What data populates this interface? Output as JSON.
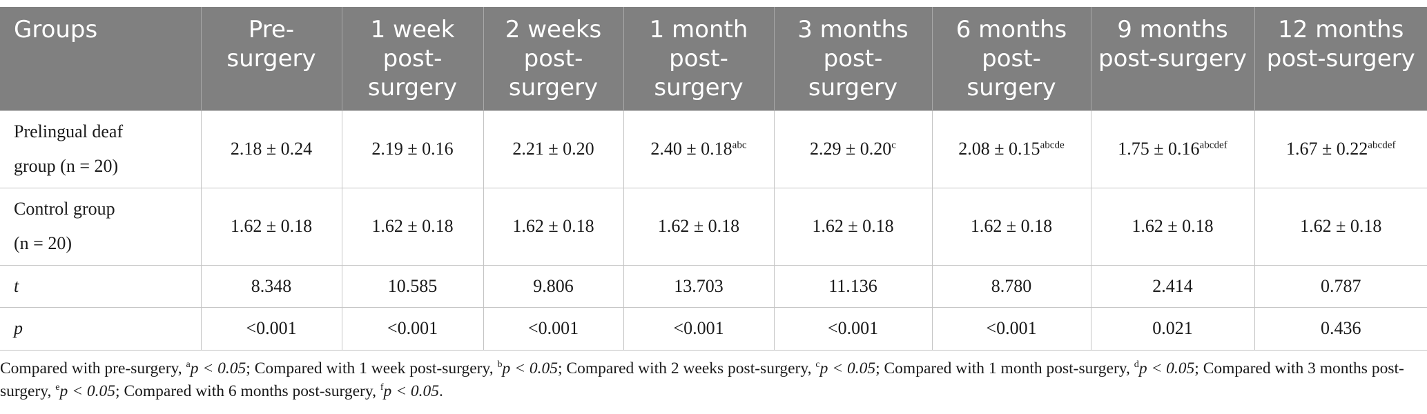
{
  "table": {
    "header": [
      "Groups",
      "Pre-surgery",
      "1 week post-surgery",
      "2 weeks post-surgery",
      "1 month post-surgery",
      "3 months post-surgery",
      "6 months post-surgery",
      "9 months post-surgery",
      "12 months post-surgery"
    ],
    "rows": [
      {
        "label_line1": "Prelingual deaf",
        "label_line2": "group (n = 20)",
        "cells": [
          {
            "value": "2.18 ± 0.24",
            "sup": ""
          },
          {
            "value": "2.19 ± 0.16",
            "sup": ""
          },
          {
            "value": "2.21 ± 0.20",
            "sup": ""
          },
          {
            "value": "2.40 ± 0.18",
            "sup": "abc"
          },
          {
            "value": "2.29 ± 0.20",
            "sup": "c"
          },
          {
            "value": "2.08 ± 0.15",
            "sup": "abcde"
          },
          {
            "value": "1.75 ± 0.16",
            "sup": "abcdef"
          },
          {
            "value": "1.67 ± 0.22",
            "sup": "abcdef"
          }
        ]
      },
      {
        "label_line1": "Control group",
        "label_line2": "(n = 20)",
        "cells": [
          {
            "value": "1.62 ± 0.18",
            "sup": ""
          },
          {
            "value": "1.62 ± 0.18",
            "sup": ""
          },
          {
            "value": "1.62 ± 0.18",
            "sup": ""
          },
          {
            "value": "1.62 ± 0.18",
            "sup": ""
          },
          {
            "value": "1.62 ± 0.18",
            "sup": ""
          },
          {
            "value": "1.62 ± 0.18",
            "sup": ""
          },
          {
            "value": "1.62 ± 0.18",
            "sup": ""
          },
          {
            "value": "1.62 ± 0.18",
            "sup": ""
          }
        ]
      },
      {
        "label_line1": "t",
        "label_line2": "",
        "cells": [
          {
            "value": "8.348",
            "sup": ""
          },
          {
            "value": "10.585",
            "sup": ""
          },
          {
            "value": "9.806",
            "sup": ""
          },
          {
            "value": "13.703",
            "sup": ""
          },
          {
            "value": "11.136",
            "sup": ""
          },
          {
            "value": "8.780",
            "sup": ""
          },
          {
            "value": "2.414",
            "sup": ""
          },
          {
            "value": "0.787",
            "sup": ""
          }
        ]
      },
      {
        "label_line1": "p",
        "label_line2": "",
        "cells": [
          {
            "value": "<0.001",
            "sup": ""
          },
          {
            "value": "<0.001",
            "sup": ""
          },
          {
            "value": "<0.001",
            "sup": ""
          },
          {
            "value": "<0.001",
            "sup": ""
          },
          {
            "value": "<0.001",
            "sup": ""
          },
          {
            "value": "<0.001",
            "sup": ""
          },
          {
            "value": "0.021",
            "sup": ""
          },
          {
            "value": "0.436",
            "sup": ""
          }
        ]
      }
    ]
  },
  "footnote": {
    "items": [
      {
        "prefix": "Compared with pre-surgery, ",
        "mark": "a",
        "cond": "p < 0.05"
      },
      {
        "prefix": "Compared with 1 week post-surgery, ",
        "mark": "b",
        "cond": "p < 0.05"
      },
      {
        "prefix": "Compared with 2 weeks post-surgery, ",
        "mark": "c",
        "cond": "p < 0.05"
      },
      {
        "prefix": "Compared with 1 month post-surgery, ",
        "mark": "d",
        "cond": "p < 0.05"
      },
      {
        "prefix": "Compared with 3 months post-surgery, ",
        "mark": "e",
        "cond": "p < 0.05"
      },
      {
        "prefix": "Compared with 6 months post-surgery, ",
        "mark": "f",
        "cond": "p < 0.05"
      }
    ]
  }
}
